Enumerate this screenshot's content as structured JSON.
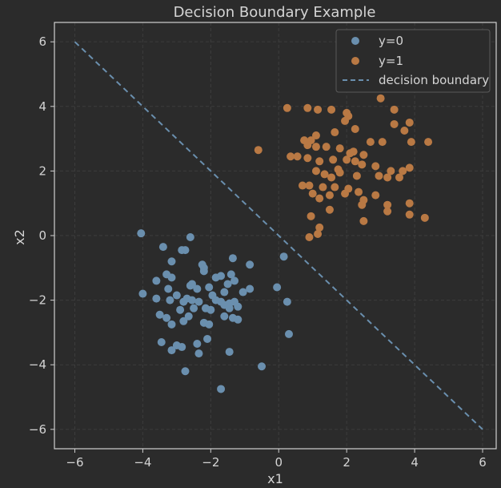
{
  "chart_data": {
    "type": "scatter",
    "title": "Decision Boundary Example",
    "xlabel": "x1",
    "ylabel": "x2",
    "xlim": [
      -6.6,
      6.4
    ],
    "ylim": [
      -6.6,
      6.6
    ],
    "xticks": [
      -6,
      -4,
      -2,
      0,
      2,
      4,
      6
    ],
    "yticks": [
      -6,
      -4,
      -2,
      0,
      2,
      4,
      6
    ],
    "grid": true,
    "legend_position": "top-right",
    "colors": {
      "background": "#2b2b2b",
      "axes_frame": "#cfcfcf",
      "grid": "#3d3d3d",
      "class0": "#6a8fae",
      "class1": "#b97944",
      "boundary": "#6a8fae"
    },
    "series": [
      {
        "name": "y=0",
        "kind": "scatter",
        "points": [
          [
            -4.05,
            0.07
          ],
          [
            -2.6,
            -0.05
          ],
          [
            -3.4,
            -0.35
          ],
          [
            -3.6,
            -1.4
          ],
          [
            -3.3,
            -1.2
          ],
          [
            -3.15,
            -1.3
          ],
          [
            -2.85,
            -0.45
          ],
          [
            -2.75,
            -0.45
          ],
          [
            -3.15,
            -0.8
          ],
          [
            -2.25,
            -0.9
          ],
          [
            -2.2,
            -1.0
          ],
          [
            -2.2,
            -1.1
          ],
          [
            -1.85,
            -1.3
          ],
          [
            -1.7,
            -1.25
          ],
          [
            -1.4,
            -1.2
          ],
          [
            -1.35,
            -0.7
          ],
          [
            -0.85,
            -0.9
          ],
          [
            -2.6,
            -1.55
          ],
          [
            -2.4,
            -1.65
          ],
          [
            -2.55,
            -1.5
          ],
          [
            -3.25,
            -1.65
          ],
          [
            -3.0,
            -1.85
          ],
          [
            -4.0,
            -1.8
          ],
          [
            -3.6,
            -1.95
          ],
          [
            -3.2,
            -2.0
          ],
          [
            -2.8,
            -2.05
          ],
          [
            -2.55,
            -2.0
          ],
          [
            -2.5,
            -2.25
          ],
          [
            -2.35,
            -2.05
          ],
          [
            -2.15,
            -2.25
          ],
          [
            -2.0,
            -2.3
          ],
          [
            -1.85,
            -2.0
          ],
          [
            -1.7,
            -2.05
          ],
          [
            -1.6,
            -2.15
          ],
          [
            -1.45,
            -2.1
          ],
          [
            -1.3,
            -2.05
          ],
          [
            -1.2,
            -2.2
          ],
          [
            -1.05,
            -1.75
          ],
          [
            -0.85,
            -1.65
          ],
          [
            -2.05,
            -1.6
          ],
          [
            -1.3,
            -1.4
          ],
          [
            -3.5,
            -2.45
          ],
          [
            -3.3,
            -2.55
          ],
          [
            -3.15,
            -2.75
          ],
          [
            -2.8,
            -2.65
          ],
          [
            -2.65,
            -2.5
          ],
          [
            -2.2,
            -2.7
          ],
          [
            -2.05,
            -2.75
          ],
          [
            -1.6,
            -2.5
          ],
          [
            -1.35,
            -2.55
          ],
          [
            -1.2,
            -2.6
          ],
          [
            -1.45,
            -2.25
          ],
          [
            -3.0,
            -3.4
          ],
          [
            -2.85,
            -3.45
          ],
          [
            -3.15,
            -3.55
          ],
          [
            -2.4,
            -3.35
          ],
          [
            -2.1,
            -3.2
          ],
          [
            -2.35,
            -3.65
          ],
          [
            -1.45,
            -3.6
          ],
          [
            -2.75,
            -4.2
          ],
          [
            -0.5,
            -4.05
          ],
          [
            -1.7,
            -4.75
          ],
          [
            -3.45,
            -3.3
          ],
          [
            -2.9,
            -2.3
          ],
          [
            -1.95,
            -1.85
          ],
          [
            -1.6,
            -1.75
          ],
          [
            -2.7,
            -1.95
          ],
          [
            0.15,
            -0.65
          ],
          [
            -0.05,
            -1.6
          ],
          [
            0.25,
            -2.05
          ],
          [
            0.3,
            -3.05
          ],
          [
            -1.5,
            -1.5
          ]
        ]
      },
      {
        "name": "y=1",
        "kind": "scatter",
        "points": [
          [
            3.0,
            4.25
          ],
          [
            0.25,
            3.95
          ],
          [
            0.85,
            3.95
          ],
          [
            1.15,
            3.9
          ],
          [
            1.55,
            3.9
          ],
          [
            2.0,
            3.8
          ],
          [
            2.05,
            3.7
          ],
          [
            1.95,
            3.55
          ],
          [
            2.25,
            3.3
          ],
          [
            3.4,
            3.9
          ],
          [
            3.4,
            3.45
          ],
          [
            3.85,
            3.5
          ],
          [
            3.7,
            3.25
          ],
          [
            1.65,
            3.2
          ],
          [
            1.1,
            3.1
          ],
          [
            0.95,
            2.95
          ],
          [
            0.75,
            2.95
          ],
          [
            0.85,
            2.8
          ],
          [
            1.1,
            2.75
          ],
          [
            1.4,
            2.75
          ],
          [
            1.8,
            2.7
          ],
          [
            2.2,
            2.6
          ],
          [
            2.5,
            2.5
          ],
          [
            2.7,
            2.9
          ],
          [
            3.05,
            2.9
          ],
          [
            3.9,
            2.9
          ],
          [
            4.4,
            2.9
          ],
          [
            -0.6,
            2.65
          ],
          [
            0.35,
            2.45
          ],
          [
            0.55,
            2.45
          ],
          [
            0.85,
            2.4
          ],
          [
            1.2,
            2.3
          ],
          [
            1.6,
            2.35
          ],
          [
            2.0,
            2.35
          ],
          [
            2.25,
            2.3
          ],
          [
            2.45,
            2.2
          ],
          [
            2.85,
            2.15
          ],
          [
            3.3,
            2.0
          ],
          [
            3.65,
            2.0
          ],
          [
            3.85,
            2.1
          ],
          [
            1.1,
            2.0
          ],
          [
            1.35,
            1.9
          ],
          [
            1.55,
            1.8
          ],
          [
            1.8,
            1.95
          ],
          [
            2.3,
            1.85
          ],
          [
            2.95,
            1.85
          ],
          [
            3.2,
            1.8
          ],
          [
            3.55,
            1.8
          ],
          [
            0.7,
            1.55
          ],
          [
            0.9,
            1.55
          ],
          [
            1.3,
            1.5
          ],
          [
            1.65,
            1.5
          ],
          [
            2.05,
            1.45
          ],
          [
            1.0,
            1.3
          ],
          [
            1.5,
            1.25
          ],
          [
            1.95,
            1.3
          ],
          [
            2.35,
            1.35
          ],
          [
            2.85,
            1.25
          ],
          [
            1.2,
            1.15
          ],
          [
            2.5,
            1.1
          ],
          [
            3.2,
            0.95
          ],
          [
            3.85,
            1.0
          ],
          [
            3.2,
            0.75
          ],
          [
            1.5,
            0.8
          ],
          [
            0.95,
            0.6
          ],
          [
            2.5,
            0.45
          ],
          [
            3.85,
            0.65
          ],
          [
            4.3,
            0.55
          ],
          [
            1.2,
            0.25
          ],
          [
            1.15,
            0.05
          ],
          [
            0.9,
            -0.05
          ],
          [
            2.45,
            0.95
          ],
          [
            1.75,
            2.05
          ],
          [
            2.1,
            2.55
          ]
        ]
      },
      {
        "name": "decision boundary",
        "kind": "line",
        "points": [
          [
            -6,
            6
          ],
          [
            6,
            -6
          ]
        ]
      }
    ]
  }
}
